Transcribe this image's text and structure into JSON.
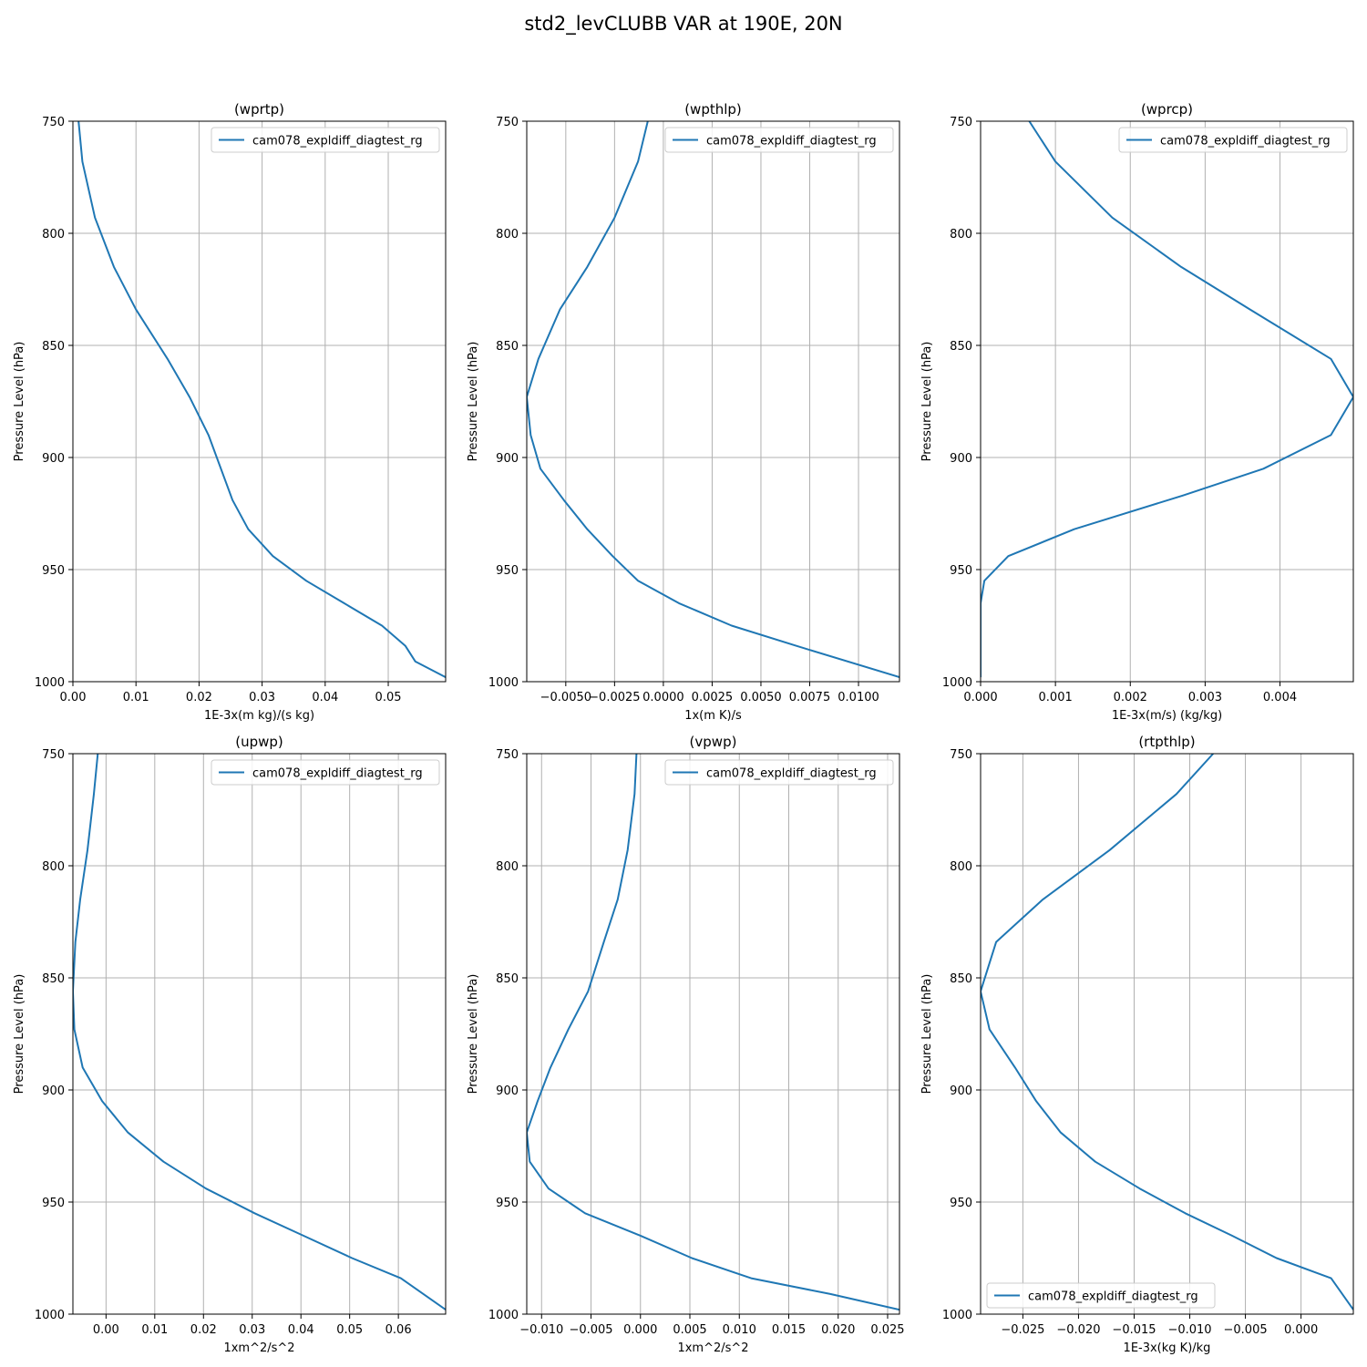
{
  "figure": {
    "title": "std2_levCLUBB VAR at 190E, 20N"
  },
  "chart_data": [
    {
      "type": "line",
      "title": "(wprtp)",
      "xlabel": "1E-3x(m kg)/(s kg)",
      "ylabel": "Pressure Level (hPa)",
      "xlim": [
        0.0,
        0.0591
      ],
      "ylim": [
        1000,
        750
      ],
      "y_inverted": true,
      "xticks": [
        0.0,
        0.01,
        0.02,
        0.03,
        0.04,
        0.05
      ],
      "xtick_labels": [
        "0.00",
        "0.01",
        "0.02",
        "0.03",
        "0.04",
        "0.05"
      ],
      "yticks": [
        750,
        800,
        850,
        900,
        950,
        1000
      ],
      "ytick_labels": [
        "750",
        "800",
        "850",
        "900",
        "950",
        "1000"
      ],
      "grid": true,
      "legend_loc": "upper right",
      "series": [
        {
          "name": "cam078_expldiff_diagtest_rg",
          "color": "#1f77b4",
          "x": [
            0.0009,
            0.0015,
            0.0035,
            0.0065,
            0.01,
            0.015,
            0.0185,
            0.0215,
            0.0253,
            0.0278,
            0.0317,
            0.037,
            0.043,
            0.049,
            0.0527,
            0.0543,
            0.0591
          ],
          "y": [
            750,
            768,
            793,
            815,
            834,
            856,
            873,
            890,
            919,
            932,
            944,
            955,
            965,
            975,
            984,
            991,
            998
          ]
        }
      ]
    },
    {
      "type": "line",
      "title": "(wpthlp)",
      "xlabel": "1x(m K)/s",
      "ylabel": "Pressure Level (hPa)",
      "xlim": [
        -0.007,
        0.0121
      ],
      "ylim": [
        1000,
        750
      ],
      "y_inverted": true,
      "xticks": [
        -0.005,
        -0.0025,
        0.0,
        0.0025,
        0.005,
        0.0075,
        0.01
      ],
      "xtick_labels": [
        "−0.0050",
        "−0.0025",
        "0.0000",
        "0.0025",
        "0.0050",
        "0.0075",
        "0.0100"
      ],
      "yticks": [
        750,
        800,
        850,
        900,
        950,
        1000
      ],
      "ytick_labels": [
        "750",
        "800",
        "850",
        "900",
        "950",
        "1000"
      ],
      "grid": true,
      "legend_loc": "upper right",
      "series": [
        {
          "name": "cam078_expldiff_diagtest_rg",
          "color": "#1f77b4",
          "x": [
            -0.0008,
            -0.0013,
            -0.0025,
            -0.0039,
            -0.0053,
            -0.0064,
            -0.007,
            -0.0068,
            -0.0063,
            -0.0051,
            -0.0039,
            -0.0026,
            -0.0013,
            0.0008,
            0.0035,
            0.0068,
            0.0121
          ],
          "y": [
            750,
            768,
            793,
            815,
            834,
            856,
            873,
            890,
            905,
            919,
            932,
            944,
            955,
            965,
            975,
            984,
            998
          ]
        }
      ]
    },
    {
      "type": "line",
      "title": "(wprcp)",
      "xlabel": "1E-3x(m/s) (kg/kg)",
      "ylabel": "Pressure Level (hPa)",
      "xlim": [
        0.0,
        0.00498
      ],
      "ylim": [
        1000,
        750
      ],
      "y_inverted": true,
      "xticks": [
        0.0,
        0.001,
        0.002,
        0.003,
        0.004
      ],
      "xtick_labels": [
        "0.000",
        "0.001",
        "0.002",
        "0.003",
        "0.004"
      ],
      "yticks": [
        750,
        800,
        850,
        900,
        950,
        1000
      ],
      "ytick_labels": [
        "750",
        "800",
        "850",
        "900",
        "950",
        "1000"
      ],
      "grid": true,
      "legend_loc": "upper right",
      "series": [
        {
          "name": "cam078_expldiff_diagtest_rg",
          "color": "#1f77b4",
          "x": [
            0.00065,
            0.001,
            0.00176,
            0.00268,
            0.0036,
            0.00468,
            0.00498,
            0.00468,
            0.00378,
            0.0027,
            0.00125,
            0.00037,
            5e-05,
            0.0,
            0.0,
            0.0,
            0.0
          ],
          "y": [
            750,
            768,
            793,
            815,
            834,
            856,
            873,
            890,
            905,
            917,
            932,
            944,
            955,
            965,
            975,
            984,
            998
          ]
        }
      ]
    },
    {
      "type": "line",
      "title": "(upwp)",
      "xlabel": "1xm^2/s^2",
      "ylabel": "Pressure Level (hPa)",
      "xlim": [
        -0.0068,
        0.0697
      ],
      "ylim": [
        1000,
        750
      ],
      "y_inverted": true,
      "xticks": [
        0.0,
        0.01,
        0.02,
        0.03,
        0.04,
        0.05,
        0.06
      ],
      "xtick_labels": [
        "0.00",
        "0.01",
        "0.02",
        "0.03",
        "0.04",
        "0.05",
        "0.06"
      ],
      "yticks": [
        750,
        800,
        850,
        900,
        950,
        1000
      ],
      "ytick_labels": [
        "750",
        "800",
        "850",
        "900",
        "950",
        "1000"
      ],
      "grid": true,
      "legend_loc": "upper right",
      "series": [
        {
          "name": "cam078_expldiff_diagtest_rg",
          "color": "#1f77b4",
          "x": [
            -0.0017,
            -0.0025,
            -0.0038,
            -0.0053,
            -0.0063,
            -0.0068,
            -0.0065,
            -0.0048,
            -0.0008,
            0.0045,
            0.0118,
            0.0205,
            0.0305,
            0.0405,
            0.0505,
            0.0605,
            0.0697
          ],
          "y": [
            750,
            768,
            793,
            815,
            834,
            856,
            873,
            890,
            905,
            919,
            932,
            944,
            955,
            965,
            975,
            984,
            998
          ]
        }
      ]
    },
    {
      "type": "line",
      "title": "(vpwp)",
      "xlabel": "1xm^2/s^2",
      "ylabel": "Pressure Level (hPa)",
      "xlim": [
        -0.0115,
        0.0262
      ],
      "ylim": [
        1000,
        750
      ],
      "y_inverted": true,
      "xticks": [
        -0.01,
        -0.005,
        0.0,
        0.005,
        0.01,
        0.015,
        0.02,
        0.025
      ],
      "xtick_labels": [
        "−0.010",
        "−0.005",
        "0.000",
        "0.005",
        "0.010",
        "0.015",
        "0.020",
        "0.025"
      ],
      "yticks": [
        750,
        800,
        850,
        900,
        950,
        1000
      ],
      "ytick_labels": [
        "750",
        "800",
        "850",
        "900",
        "950",
        "1000"
      ],
      "grid": true,
      "legend_loc": "upper right",
      "series": [
        {
          "name": "cam078_expldiff_diagtest_rg",
          "color": "#1f77b4",
          "x": [
            -0.0004,
            -0.0006,
            -0.0013,
            -0.0023,
            -0.0037,
            -0.0053,
            -0.0073,
            -0.0091,
            -0.0104,
            -0.0115,
            -0.0112,
            -0.0093,
            -0.0056,
            0.0,
            0.0052,
            0.0112,
            0.0192,
            0.0262
          ],
          "y": [
            750,
            768,
            793,
            815,
            834,
            856,
            873,
            890,
            905,
            919,
            932,
            944,
            955,
            965,
            975,
            984,
            991,
            998
          ]
        }
      ]
    },
    {
      "type": "line",
      "title": "(rtpthlp)",
      "xlabel": "1E-3x(kg K)/kg",
      "ylabel": "Pressure Level (hPa)",
      "xlim": [
        -0.0288,
        0.0047
      ],
      "ylim": [
        1000,
        750
      ],
      "y_inverted": true,
      "xticks": [
        -0.025,
        -0.02,
        -0.015,
        -0.01,
        -0.005,
        0.0
      ],
      "xtick_labels": [
        "−0.025",
        "−0.020",
        "−0.015",
        "−0.010",
        "−0.005",
        "0.000"
      ],
      "yticks": [
        750,
        800,
        850,
        900,
        950,
        1000
      ],
      "ytick_labels": [
        "750",
        "800",
        "850",
        "900",
        "950",
        "1000"
      ],
      "grid": true,
      "legend_loc": "lower left",
      "series": [
        {
          "name": "cam078_expldiff_diagtest_rg",
          "color": "#1f77b4",
          "x": [
            -0.0079,
            -0.0112,
            -0.0172,
            -0.0232,
            -0.0274,
            -0.0288,
            -0.028,
            -0.0257,
            -0.0238,
            -0.0216,
            -0.0185,
            -0.0145,
            -0.0104,
            -0.0062,
            -0.0022,
            0.0027,
            0.0047
          ],
          "y": [
            750,
            768,
            793,
            815,
            834,
            856,
            873,
            890,
            905,
            919,
            932,
            944,
            955,
            965,
            975,
            984,
            998
          ]
        }
      ]
    }
  ]
}
